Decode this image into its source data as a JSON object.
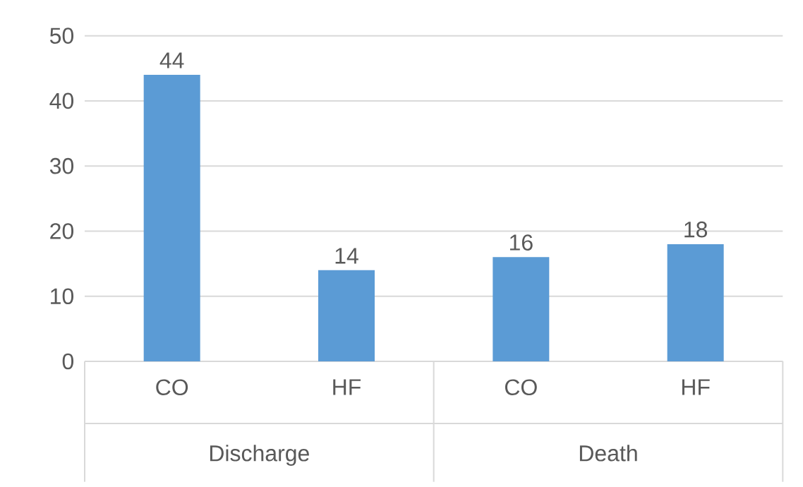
{
  "chart_data": {
    "type": "bar",
    "categories": [
      "CO",
      "HF",
      "CO",
      "HF"
    ],
    "values": [
      44,
      14,
      16,
      18
    ],
    "color": "#5b9bd5",
    "ylim": [
      0,
      50
    ],
    "yticks": [
      0,
      10,
      20,
      30,
      40,
      50
    ],
    "grid": "y",
    "data_labels": true,
    "annotations": [
      "Discharge",
      "Death"
    ]
  }
}
